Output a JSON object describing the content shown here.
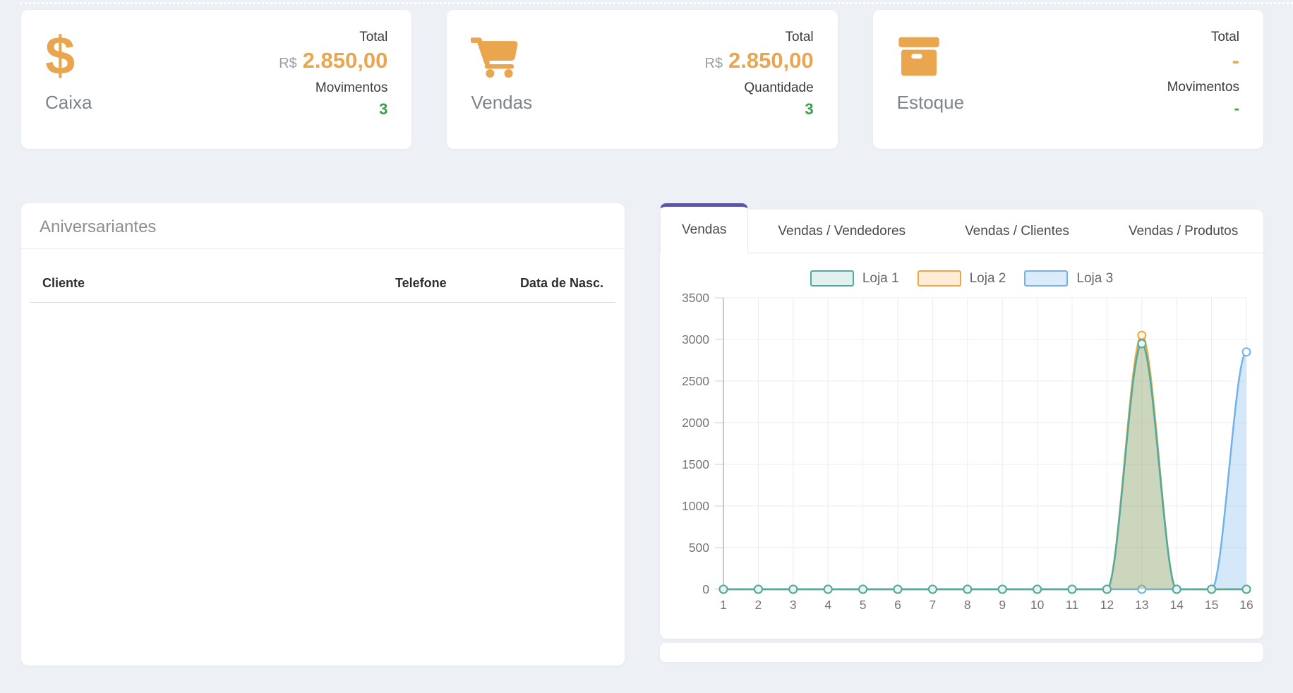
{
  "colors": {
    "page_background": "#edf0f5",
    "accent_orange": "#EAA64F",
    "accent_green": "#3A9D49",
    "tab_accent_purple": "#5A55A6",
    "text_dark": "#3b3b3b",
    "text_gray": "#7d848a",
    "axis_text": "#767676"
  },
  "cards": [
    {
      "label": "Caixa",
      "icon": "dollar-icon",
      "stat1_label": "Total",
      "stat1_prefix": "R$",
      "stat1_value": "2.850,00",
      "stat2_label": "Movimentos",
      "stat2_value": "3"
    },
    {
      "label": "Vendas",
      "icon": "cart-icon",
      "stat1_label": "Total",
      "stat1_prefix": "R$",
      "stat1_value": "2.850,00",
      "stat2_label": "Quantidade",
      "stat2_value": "3"
    },
    {
      "label": "Estoque",
      "icon": "box-icon",
      "stat1_label": "Total",
      "stat1_prefix": "",
      "stat1_value": "-",
      "stat2_label": "Movimentos",
      "stat2_value": "-"
    }
  ],
  "birthdays": {
    "title": "Aniversariantes",
    "columns": [
      "Cliente",
      "Telefone",
      "Data de Nasc."
    ],
    "rows": []
  },
  "sales_panel": {
    "tabs": [
      {
        "label": "Vendas",
        "active": true
      },
      {
        "label": "Vendas / Vendedores",
        "active": false
      },
      {
        "label": "Vendas / Clientes",
        "active": false
      },
      {
        "label": "Vendas / Produtos",
        "active": false
      }
    ]
  },
  "chart_data": {
    "type": "area",
    "x": [
      1,
      2,
      3,
      4,
      5,
      6,
      7,
      8,
      9,
      10,
      11,
      12,
      13,
      14,
      15,
      16
    ],
    "series": [
      {
        "name": "Loja 1",
        "color": "#4FAB9F",
        "fill": "rgba(79,171,159,0.28)",
        "marker_fill": "#e9f4f0",
        "legend_fill": "#e3f1ee",
        "values": [
          0,
          0,
          0,
          0,
          0,
          0,
          0,
          0,
          0,
          0,
          0,
          0,
          2950,
          0,
          0,
          0
        ]
      },
      {
        "name": "Loja 2",
        "color": "#F2A63D",
        "fill": "rgba(242,166,61,0.28)",
        "marker_fill": "#fdf3e3",
        "legend_fill": "#fcecd8",
        "values": [
          0,
          0,
          0,
          0,
          0,
          0,
          0,
          0,
          0,
          0,
          0,
          0,
          3050,
          0,
          0,
          0
        ]
      },
      {
        "name": "Loja 3",
        "color": "#6FB2EC",
        "fill": "rgba(111,178,236,0.30)",
        "marker_fill": "#ffffff",
        "legend_fill": "#dcebfa",
        "values": [
          0,
          0,
          0,
          0,
          0,
          0,
          0,
          0,
          0,
          0,
          0,
          0,
          0,
          0,
          0,
          2850
        ]
      }
    ],
    "title": "",
    "xlabel": "",
    "ylabel": "",
    "ylim": [
      0,
      3500
    ],
    "ytick_step": 500,
    "grid": true,
    "legend_position": "top"
  }
}
